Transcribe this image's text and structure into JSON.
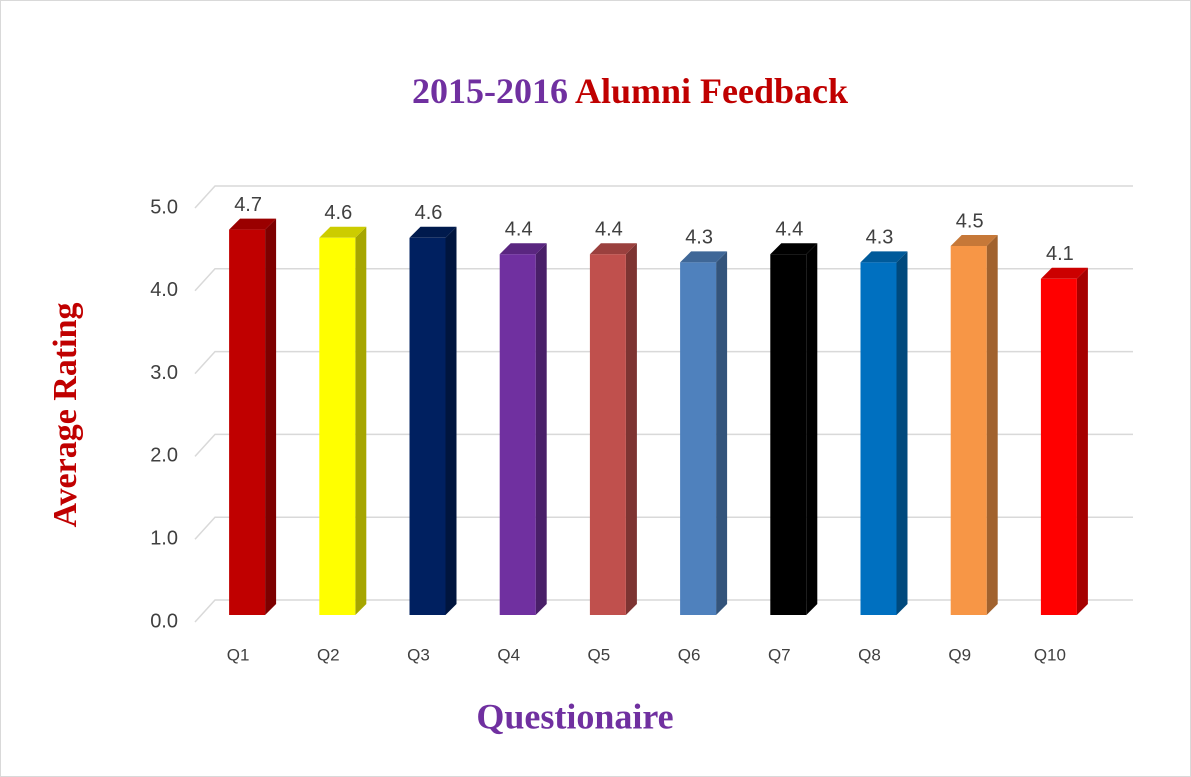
{
  "chart_data": {
    "type": "bar3d",
    "title": [
      "2015-2016",
      "Alumni Feedback"
    ],
    "title_colors": [
      "#7030a0",
      "#c00000"
    ],
    "y_label": "Average Rating",
    "y_label_color": "#c00000",
    "x_label": "Questionaire",
    "x_label_color": "#7030a0",
    "categories": [
      "Q1",
      "Q2",
      "Q3",
      "Q4",
      "Q5",
      "Q6",
      "Q7",
      "Q8",
      "Q9",
      "Q10"
    ],
    "values": [
      4.7,
      4.6,
      4.6,
      4.4,
      4.4,
      4.3,
      4.4,
      4.3,
      4.5,
      4.1
    ],
    "colors": [
      "#c00000",
      "#ffff00",
      "#002060",
      "#7030a0",
      "#c0504d",
      "#4f81bd",
      "#000000",
      "#0070c0",
      "#f79646",
      "#ff0000"
    ],
    "ylim": [
      0,
      5
    ],
    "yticks": [
      {
        "value": 0,
        "label": "0.0"
      },
      {
        "value": 1,
        "label": "1.0"
      },
      {
        "value": 2,
        "label": "2.0"
      },
      {
        "value": 3,
        "label": "3.0"
      },
      {
        "value": 4,
        "label": "4.0"
      },
      {
        "value": 5,
        "label": "5.0"
      }
    ],
    "grid": true
  }
}
